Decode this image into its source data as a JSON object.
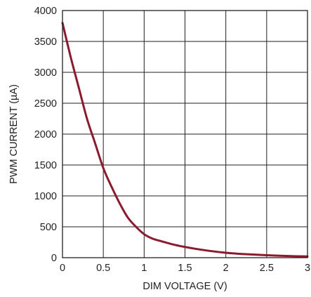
{
  "chart_data": {
    "type": "line",
    "title": "",
    "xlabel": "DIM VOLTAGE (V)",
    "ylabel": "PWM CURRENT (µA)",
    "xlim": [
      0,
      3
    ],
    "ylim": [
      0,
      4000
    ],
    "x_ticks": [
      0,
      0.5,
      1,
      1.5,
      2,
      2.5,
      3
    ],
    "x_tick_labels": [
      "0",
      "0.5",
      "1",
      "1.5",
      "2",
      "2.5",
      "3"
    ],
    "y_ticks": [
      0,
      500,
      1000,
      1500,
      2000,
      2500,
      3000,
      3500,
      4000
    ],
    "y_tick_labels": [
      "0",
      "500",
      "1000",
      "1500",
      "2000",
      "2500",
      "3000",
      "3500",
      "4000"
    ],
    "grid": true,
    "legend": "none",
    "colors": {
      "series": "#8b1a2e",
      "grid": "#231f20"
    },
    "series": [
      {
        "x": [
          0,
          0.1,
          0.2,
          0.3,
          0.4,
          0.5,
          0.6,
          0.7,
          0.8,
          0.9,
          1.0,
          1.1,
          1.2,
          1.4,
          1.6,
          1.8,
          2.0,
          2.2,
          2.5,
          2.8,
          3.0
        ],
        "values": [
          3800,
          3250,
          2750,
          2250,
          1850,
          1450,
          1150,
          880,
          650,
          500,
          380,
          310,
          270,
          200,
          150,
          110,
          80,
          60,
          40,
          25,
          20
        ]
      }
    ]
  }
}
